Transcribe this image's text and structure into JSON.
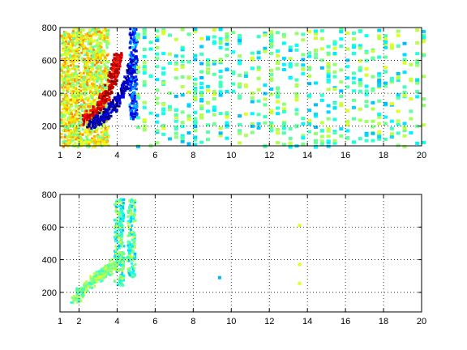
{
  "chart_data": [
    {
      "type": "heatmap",
      "title": "",
      "xlabel": "",
      "ylabel": "",
      "xlim": [
        1,
        20
      ],
      "ylim": [
        80,
        800
      ],
      "grid": true,
      "colormap": "jet",
      "x_ticks": [
        1,
        2,
        4,
        6,
        8,
        10,
        12,
        14,
        16,
        18,
        20
      ],
      "y_ticks": [
        200,
        400,
        600,
        800
      ],
      "x_tick_labels": [
        "1",
        "2",
        "4",
        "6",
        "8",
        "10",
        "12",
        "14",
        "16",
        "18",
        "20"
      ],
      "y_tick_labels": [
        "200",
        "400",
        "600",
        "800"
      ],
      "density_features": [
        {
          "description": "dense background, x 1-3.5",
          "x_range": [
            1,
            3.5
          ],
          "y_range": [
            80,
            800
          ],
          "typical_value": 0.6
        },
        {
          "description": "hot ridge rising with x",
          "path": [
            [
              2.2,
              240
            ],
            [
              2.8,
              300
            ],
            [
              3.3,
              380
            ],
            [
              3.7,
              480
            ],
            [
              3.9,
              580
            ],
            [
              4.0,
              640
            ]
          ],
          "value": 0.92
        },
        {
          "description": "cold band below ridge",
          "path": [
            [
              2.5,
              200
            ],
            [
              3.2,
              260
            ],
            [
              3.8,
              330
            ],
            [
              4.3,
              420
            ],
            [
              4.6,
              520
            ],
            [
              4.8,
              620
            ]
          ],
          "value": 0.05
        },
        {
          "description": "cold column near x=4.8",
          "x_range": [
            4.6,
            5.0
          ],
          "y_range": [
            250,
            800
          ],
          "value": 0.2
        },
        {
          "description": "sparse scatter, x 5-20",
          "x_range": [
            5,
            20
          ],
          "y_range": [
            80,
            800
          ],
          "typical_value": 0.45
        }
      ]
    },
    {
      "type": "heatmap",
      "title": "",
      "xlabel": "",
      "ylabel": "",
      "xlim": [
        1,
        20
      ],
      "ylim": [
        80,
        800
      ],
      "grid": true,
      "colormap": "jet",
      "x_ticks": [
        1,
        2,
        4,
        6,
        8,
        10,
        12,
        14,
        16,
        18,
        20
      ],
      "y_ticks": [
        200,
        400,
        600,
        800
      ],
      "x_tick_labels": [
        "1",
        "2",
        "4",
        "6",
        "8",
        "10",
        "12",
        "14",
        "16",
        "18",
        "20"
      ],
      "y_tick_labels": [
        "200",
        "400",
        "600",
        "800"
      ],
      "density_features": [
        {
          "description": "diagonal cluster",
          "path": [
            [
              1.7,
              160
            ],
            [
              2.2,
              230
            ],
            [
              2.8,
              290
            ],
            [
              3.3,
              330
            ],
            [
              3.8,
              380
            ],
            [
              4.3,
              430
            ]
          ],
          "value": 0.5
        },
        {
          "description": "column x~4",
          "x_range": [
            3.8,
            4.3
          ],
          "y_range": [
            250,
            780
          ],
          "value": 0.45
        },
        {
          "description": "column x~4.7",
          "x_range": [
            4.5,
            4.9
          ],
          "y_range": [
            300,
            780
          ],
          "value": 0.45
        },
        {
          "description": "isolated point",
          "x": 9.3,
          "y": 300,
          "value": 0.3
        },
        {
          "description": "isolated points near x=13.5",
          "x": 13.5,
          "y_values": [
            620,
            380,
            265
          ],
          "value": 0.6
        }
      ]
    }
  ]
}
